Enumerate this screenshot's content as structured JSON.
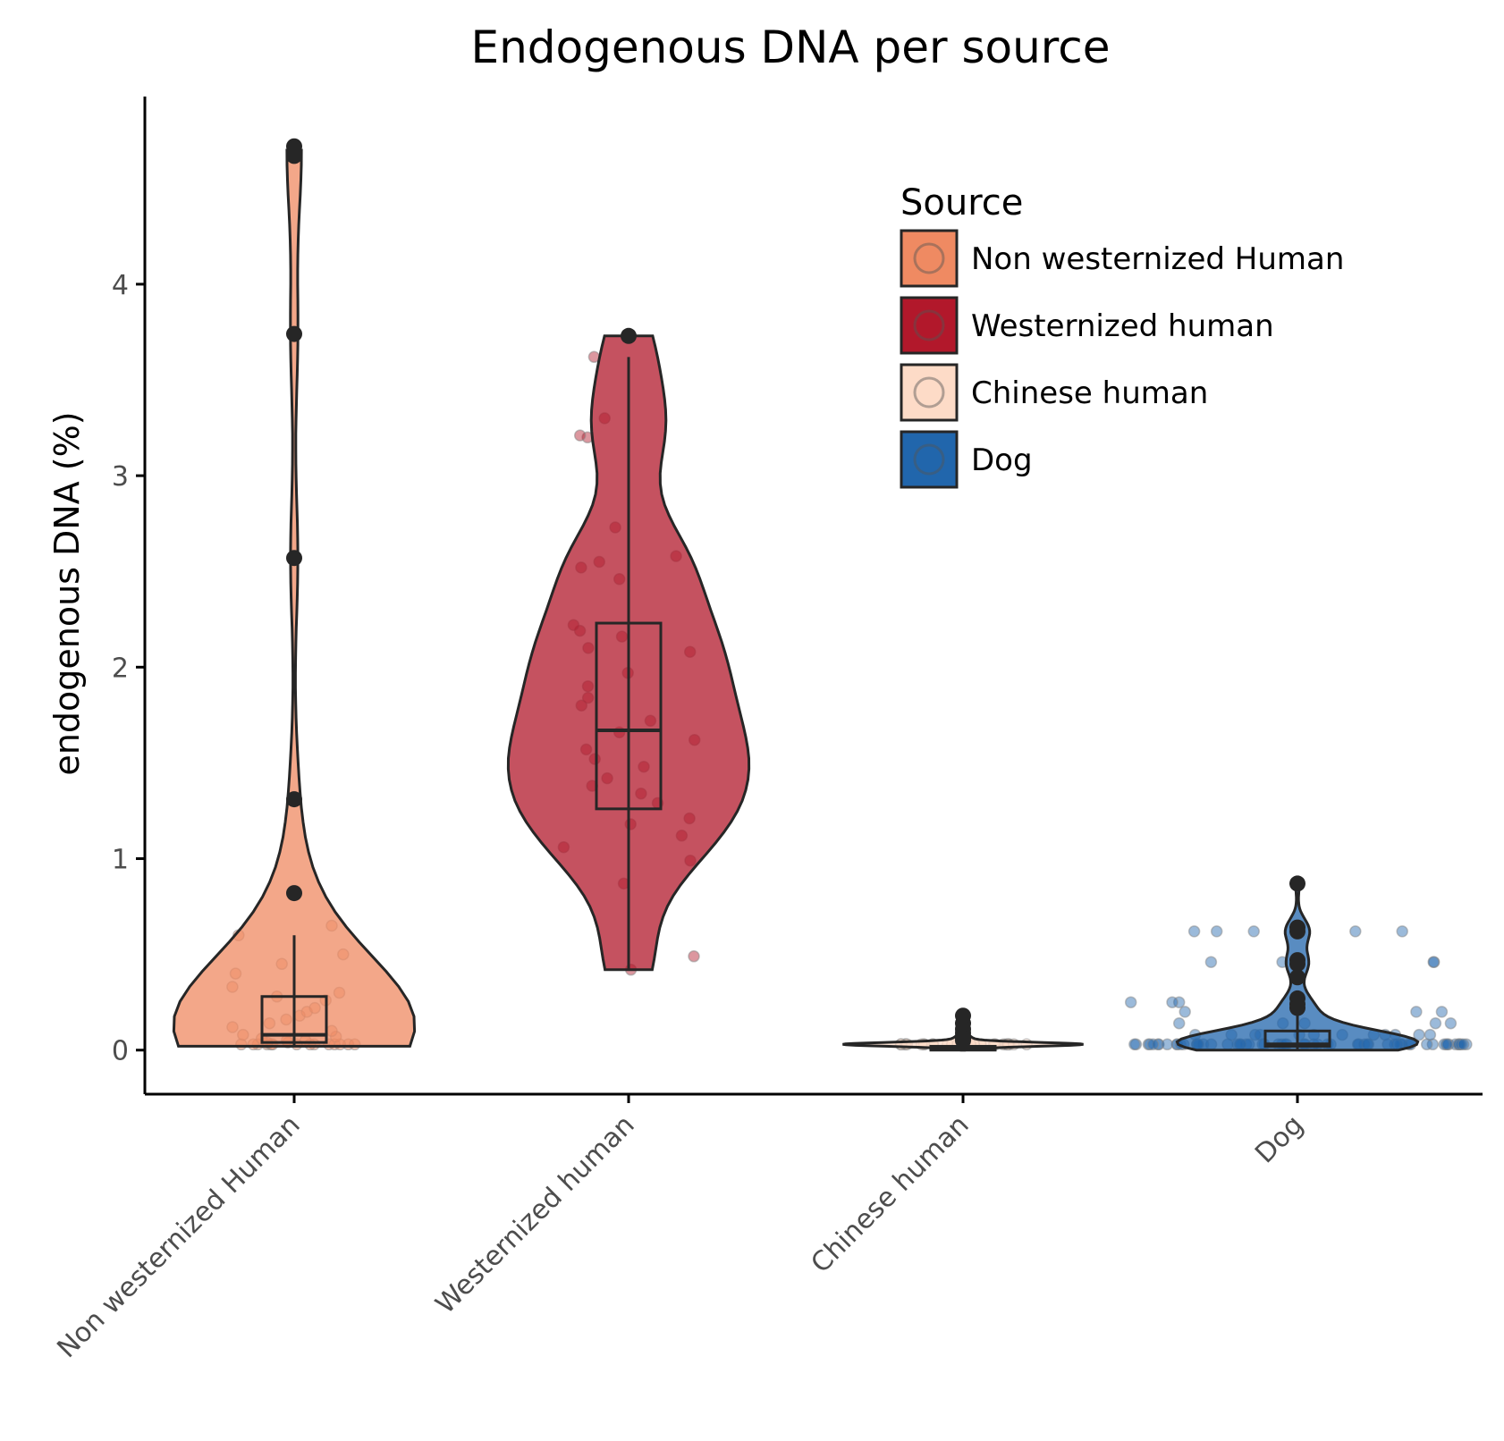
{
  "chart_data": {
    "type": "violin-box-jitter",
    "title": "Endogenous DNA per source",
    "xlabel": "",
    "ylabel": "endogenous DNA (%)",
    "ylim": [
      -0.23,
      4.98
    ],
    "yticks": [
      0,
      1,
      2,
      3,
      4
    ],
    "grid": false,
    "legend_title": "Source",
    "legend_position": "top-right",
    "categories": [
      "Non westernized Human",
      "Westernized human",
      "Chinese human",
      "Dog"
    ],
    "series": [
      {
        "name": "Non westernized Human",
        "color": "#ef8a62",
        "box": {
          "q1": 0.04,
          "median": 0.08,
          "q3": 0.28,
          "whisker_low": 0.02,
          "whisker_high": 0.6
        },
        "violin_range": [
          0.02,
          4.7
        ],
        "outliers": [
          4.72,
          4.67,
          3.74,
          2.57,
          1.31,
          0.82
        ],
        "points": [
          0.03,
          0.03,
          0.03,
          0.03,
          0.03,
          0.03,
          0.03,
          0.03,
          0.03,
          0.03,
          0.03,
          0.03,
          0.03,
          0.03,
          0.04,
          0.04,
          0.05,
          0.05,
          0.06,
          0.07,
          0.08,
          0.1,
          0.12,
          0.14,
          0.16,
          0.18,
          0.2,
          0.22,
          0.26,
          0.28,
          0.3,
          0.33,
          0.4,
          0.45,
          0.5,
          0.6,
          0.65
        ]
      },
      {
        "name": "Westernized human",
        "color": "#b2182b",
        "box": {
          "q1": 1.26,
          "median": 1.67,
          "q3": 2.23,
          "whisker_low": 0.42,
          "whisker_high": 3.62
        },
        "violin_range": [
          0.42,
          3.73
        ],
        "outliers": [
          3.73
        ],
        "points": [
          0.42,
          0.49,
          0.87,
          0.99,
          1.06,
          1.12,
          1.18,
          1.21,
          1.29,
          1.34,
          1.38,
          1.42,
          1.48,
          1.52,
          1.57,
          1.62,
          1.66,
          1.72,
          1.8,
          1.84,
          1.9,
          1.97,
          2.08,
          2.1,
          2.16,
          2.19,
          2.22,
          2.46,
          2.52,
          2.55,
          2.58,
          2.73,
          3.2,
          3.21,
          3.3,
          3.62
        ]
      },
      {
        "name": "Chinese human",
        "color": "#fddbc7",
        "box": {
          "q1": 0.0,
          "median": 0.01,
          "q3": 0.02,
          "whisker_low": 0.0,
          "whisker_high": 0.04
        },
        "violin_range": [
          0.0,
          0.15
        ],
        "outliers": [
          0.18,
          0.14,
          0.11,
          0.09,
          0.07,
          0.06,
          0.05
        ],
        "points": [
          0.03,
          0.03,
          0.03,
          0.03,
          0.03,
          0.03,
          0.03,
          0.03,
          0.03,
          0.03,
          0.03,
          0.03,
          0.03,
          0.03,
          0.03,
          0.03,
          0.03,
          0.03,
          0.03,
          0.03,
          0.03,
          0.03,
          0.03,
          0.03,
          0.03,
          0.03,
          0.03,
          0.03,
          0.03,
          0.03
        ]
      },
      {
        "name": "Dog",
        "color": "#2166ac",
        "box": {
          "q1": 0.02,
          "median": 0.03,
          "q3": 0.1,
          "whisker_low": 0.0,
          "whisker_high": 0.2
        },
        "violin_range": [
          0.0,
          0.87
        ],
        "outliers": [
          0.87,
          0.64,
          0.62,
          0.47,
          0.45,
          0.38,
          0.27,
          0.24,
          0.22
        ],
        "points": [
          0.03,
          0.03,
          0.03,
          0.03,
          0.03,
          0.03,
          0.03,
          0.03,
          0.03,
          0.03,
          0.03,
          0.03,
          0.03,
          0.03,
          0.03,
          0.03,
          0.03,
          0.03,
          0.03,
          0.03,
          0.03,
          0.03,
          0.03,
          0.03,
          0.03,
          0.03,
          0.03,
          0.03,
          0.03,
          0.03,
          0.03,
          0.03,
          0.03,
          0.03,
          0.03,
          0.03,
          0.03,
          0.03,
          0.03,
          0.03,
          0.03,
          0.03,
          0.03,
          0.03,
          0.03,
          0.03,
          0.03,
          0.03,
          0.03,
          0.03,
          0.03,
          0.03,
          0.03,
          0.03,
          0.03,
          0.03,
          0.03,
          0.03,
          0.03,
          0.03,
          0.08,
          0.08,
          0.08,
          0.08,
          0.08,
          0.08,
          0.08,
          0.08,
          0.08,
          0.08,
          0.08,
          0.08,
          0.14,
          0.14,
          0.14,
          0.14,
          0.14,
          0.2,
          0.2,
          0.2,
          0.25,
          0.25,
          0.25,
          0.46,
          0.46,
          0.46,
          0.46,
          0.62,
          0.62,
          0.62,
          0.62,
          0.62
        ]
      }
    ]
  }
}
